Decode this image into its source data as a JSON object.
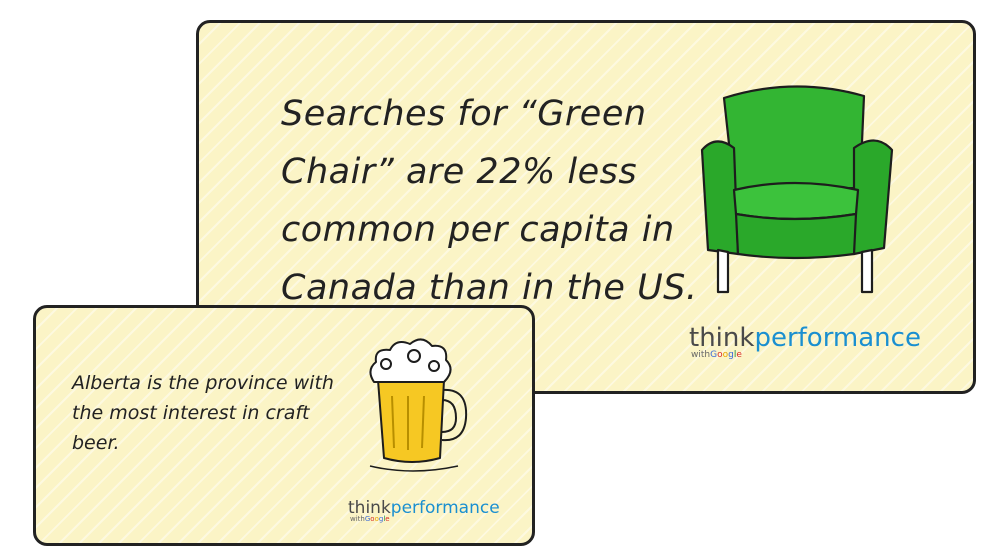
{
  "main_card": {
    "headline": "Searches for “Green Chair” are 22% less common per capita in Canada than in the US.",
    "illustration": "green-armchair-icon",
    "logo": {
      "think": "think",
      "performance": "performance",
      "with": "with",
      "google": [
        "G",
        "o",
        "o",
        "g",
        "l",
        "e"
      ]
    }
  },
  "small_card": {
    "fact": "Alberta is the province with the most interest in craft beer.",
    "illustration": "beer-mug-icon",
    "logo": {
      "think": "think",
      "performance": "performance",
      "with": "with",
      "google": [
        "G",
        "o",
        "o",
        "g",
        "l",
        "e"
      ]
    }
  },
  "colors": {
    "card_bg": "#fbf4c6",
    "chair_green": "#2db52d",
    "beer_yellow": "#f6c823",
    "brand_blue": "#1a8fd0"
  }
}
